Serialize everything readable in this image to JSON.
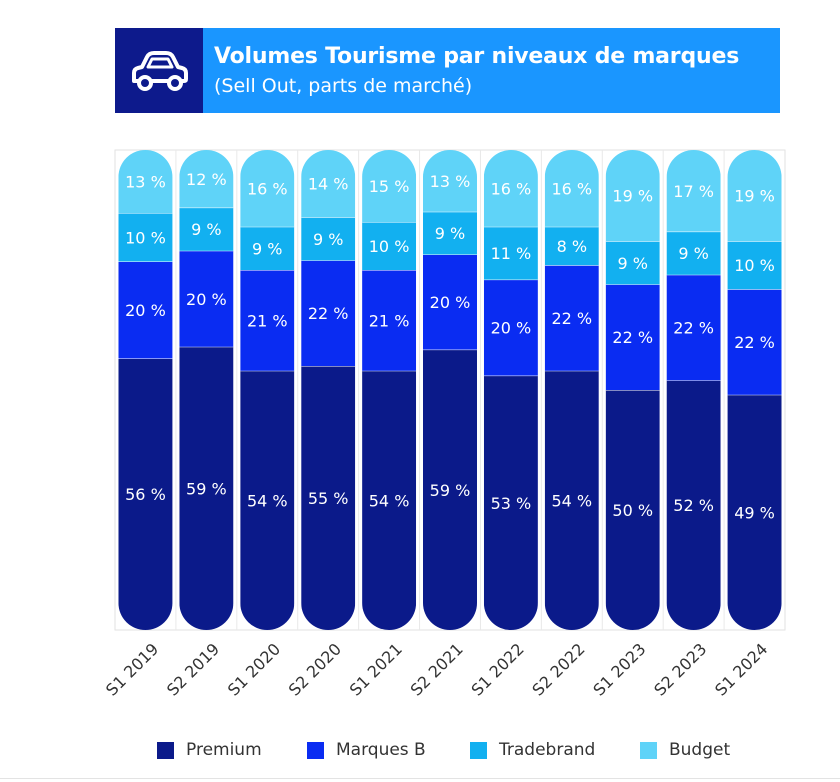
{
  "header": {
    "title": "Volumes Tourisme par niveaux de marques",
    "subtitle": "(Sell Out, parts de marché)",
    "icon": "car-icon",
    "title_bg": "#1a96ff",
    "icon_bg": "#0d1a8c"
  },
  "chart_data": {
    "type": "bar",
    "stacked": true,
    "orientation": "vertical",
    "unit": "%",
    "categories": [
      "S1 2019",
      "S2 2019",
      "S1 2020",
      "S2 2020",
      "S1 2021",
      "S2 2021",
      "S1 2022",
      "S2 2022",
      "S1 2023",
      "S2 2023",
      "S1 2024"
    ],
    "series": [
      {
        "name": "Premium",
        "color": "#0b1a8a",
        "values": [
          56,
          59,
          54,
          55,
          54,
          59,
          53,
          54,
          50,
          52,
          49
        ]
      },
      {
        "name": "Marques B",
        "color": "#0a2cf2",
        "values": [
          20,
          20,
          21,
          22,
          21,
          20,
          20,
          22,
          22,
          22,
          22
        ]
      },
      {
        "name": "Tradebrand",
        "color": "#12b0f0",
        "values": [
          10,
          9,
          9,
          9,
          10,
          9,
          11,
          8,
          9,
          9,
          10
        ]
      },
      {
        "name": "Budget",
        "color": "#5fd3f8",
        "values": [
          13,
          12,
          16,
          14,
          15,
          13,
          16,
          16,
          19,
          17,
          19
        ]
      }
    ],
    "data_label_suffix": " %",
    "grid": false,
    "legend_position": "bottom"
  }
}
